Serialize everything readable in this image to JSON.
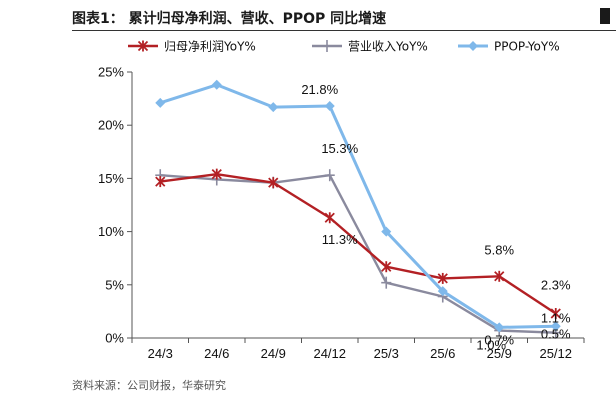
{
  "figure": {
    "title": "图表1：  累计归母净利润、营收、PPOP 同比增速",
    "source": "资料来源：公司财报，华泰研究"
  },
  "chart_data": {
    "type": "line",
    "categories": [
      "24/3",
      "24/6",
      "24/9",
      "24/12",
      "25/3",
      "25/6",
      "25/9",
      "25/12"
    ],
    "ylim": [
      0,
      25
    ],
    "yticks": [
      "0%",
      "5%",
      "10%",
      "15%",
      "20%",
      "25%"
    ],
    "ytick_values": [
      0,
      5,
      10,
      15,
      20,
      25
    ],
    "grid": false,
    "legend": "top",
    "series": [
      {
        "name": "归母净利润YoY%",
        "color": "#b32024",
        "marker": "star",
        "values": [
          14.7,
          15.4,
          14.6,
          11.3,
          6.7,
          5.6,
          5.8,
          2.3
        ]
      },
      {
        "name": "营业收入YoY%",
        "color": "#8a8a9e",
        "marker": "plus",
        "values": [
          15.3,
          14.9,
          14.6,
          15.3,
          5.2,
          3.9,
          0.7,
          0.5
        ]
      },
      {
        "name": "PPOP-YoY%",
        "color": "#7fb8ea",
        "marker": "diamond",
        "values": [
          22.1,
          23.8,
          21.7,
          21.8,
          10.0,
          4.4,
          1.0,
          1.1
        ]
      }
    ],
    "annotations": [
      {
        "text": "21.8%",
        "category": "24/12",
        "value": 21.8
      },
      {
        "text": "15.3%",
        "category": "24/12",
        "value": 15.3
      },
      {
        "text": "11.3%",
        "category": "24/12",
        "value": 11.3
      },
      {
        "text": "5.8%",
        "category": "25/9",
        "value": 5.8
      },
      {
        "text": "1.0%",
        "category": "25/9",
        "value": 1.0
      },
      {
        "text": "0.7%",
        "category": "25/9",
        "value": 0.7
      },
      {
        "text": "2.3%",
        "category": "25/12",
        "value": 2.3
      },
      {
        "text": "1.1%",
        "category": "25/12",
        "value": 1.1
      },
      {
        "text": "0.5%",
        "category": "25/12",
        "value": 0.5
      }
    ]
  }
}
